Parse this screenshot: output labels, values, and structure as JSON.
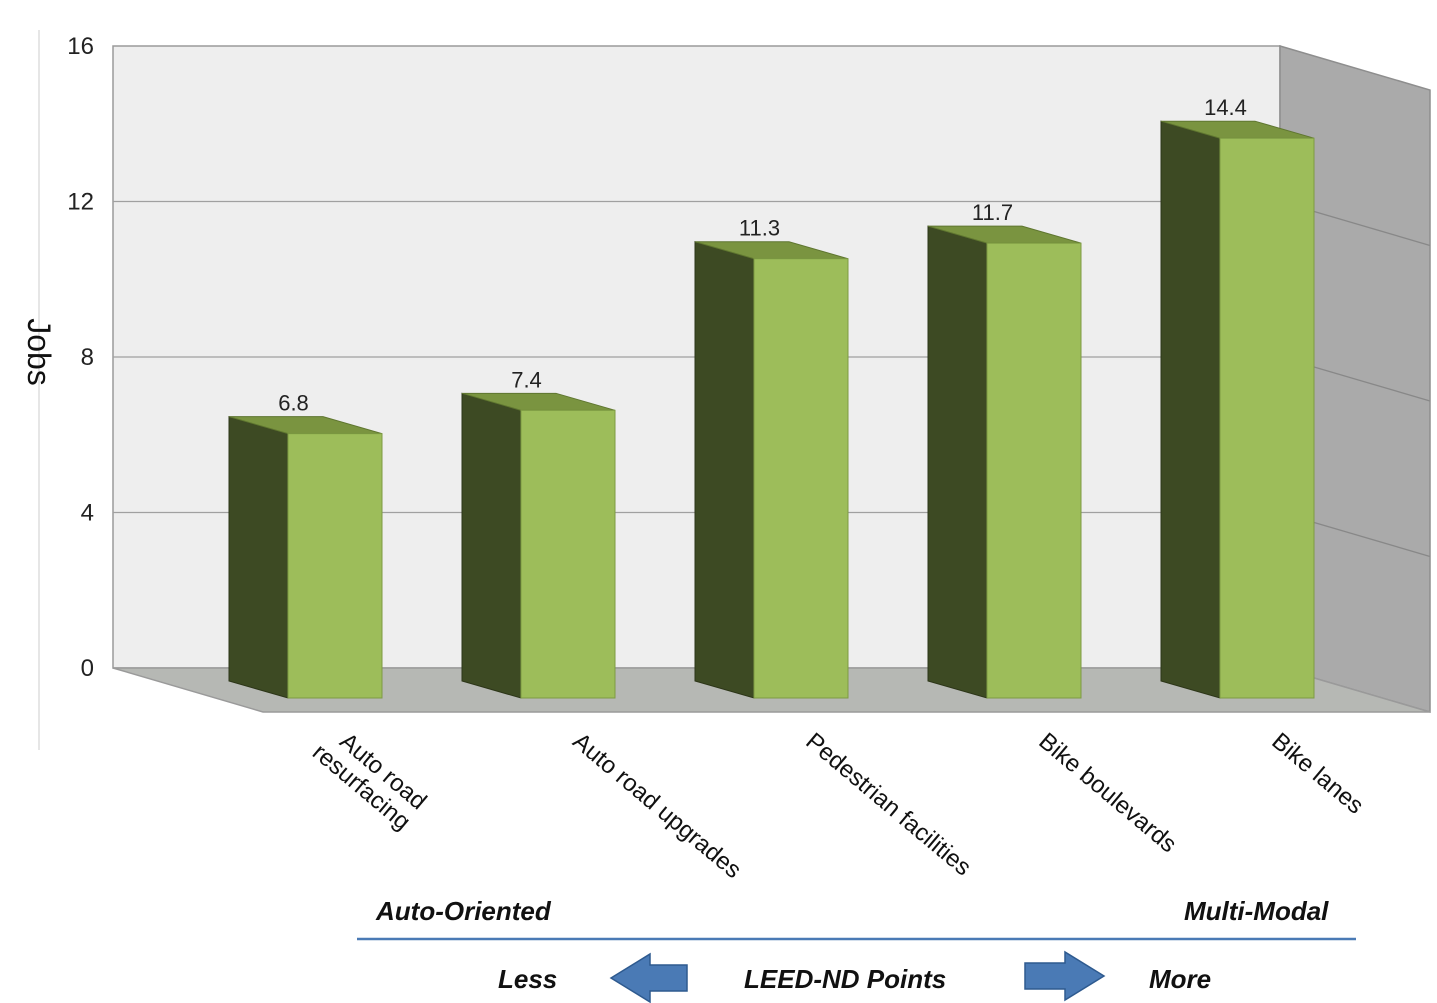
{
  "chart_data": {
    "type": "bar",
    "three_d": true,
    "ylabel": "Jobs",
    "ylim": [
      0,
      16
    ],
    "yticks": [
      "0",
      "4",
      "8",
      "12",
      "16"
    ],
    "grid": true,
    "categories": [
      "Auto road resurfacing",
      "Auto road upgrades",
      "Pedestrian facilities",
      "Bike boulevards",
      "Bike lanes"
    ],
    "values": [
      6.8,
      7.4,
      11.3,
      11.7,
      14.4
    ],
    "value_labels": [
      "6.8",
      "7.4",
      "11.3",
      "11.7",
      "14.4"
    ],
    "colors": {
      "bar_front": "#9dbd5a",
      "bar_side": "#3d4a23",
      "bar_top": "#7a9440",
      "wall": "#eeeeee",
      "side_wall": "#aaaaaa",
      "floor": "#b6b8b4",
      "arrow": "#4a7ab5"
    }
  },
  "footer": {
    "left_title": "Auto-Oriented",
    "right_title": "Multi-Modal",
    "less": "Less",
    "middle": "LEED-ND Points",
    "more": "More"
  }
}
